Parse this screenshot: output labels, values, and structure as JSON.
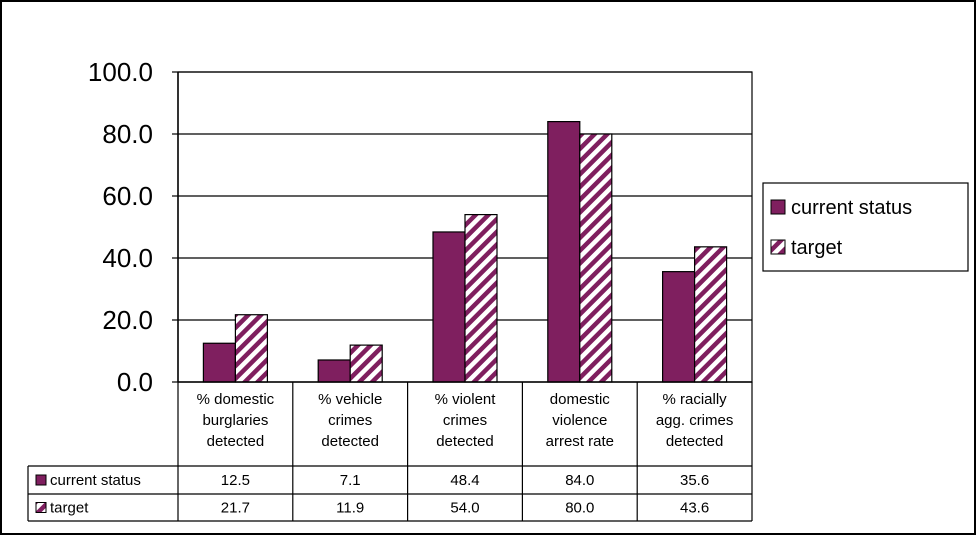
{
  "chart_data": {
    "type": "bar",
    "categories": [
      [
        "% domestic",
        "burglaries",
        "detected"
      ],
      [
        "% vehicle",
        "crimes",
        "detected"
      ],
      [
        "% violent",
        "crimes",
        "detected"
      ],
      [
        "domestic",
        "violence",
        "arrest rate"
      ],
      [
        "% racially",
        "agg. crimes",
        "detected"
      ]
    ],
    "series": [
      {
        "name": "current status",
        "values": [
          12.5,
          7.1,
          48.4,
          84.0,
          35.6
        ],
        "table_values": [
          "12.5",
          "7.1",
          "48.4",
          "84.0",
          "35.6"
        ],
        "color": "#7f1f5f",
        "pattern": "solid"
      },
      {
        "name": "target",
        "values": [
          21.7,
          11.9,
          54.0,
          80.0,
          43.6
        ],
        "table_values": [
          "21.7",
          "11.9",
          "54.0",
          "80.0",
          "43.6"
        ],
        "color": "#7f1f5f",
        "pattern": "diagonal-stripes"
      }
    ],
    "ylim": [
      0,
      100
    ],
    "yticks": [
      "0.0",
      "20.0",
      "40.0",
      "60.0",
      "80.0",
      "100.0"
    ],
    "grid": true,
    "legend_position": "right",
    "data_table": true
  }
}
